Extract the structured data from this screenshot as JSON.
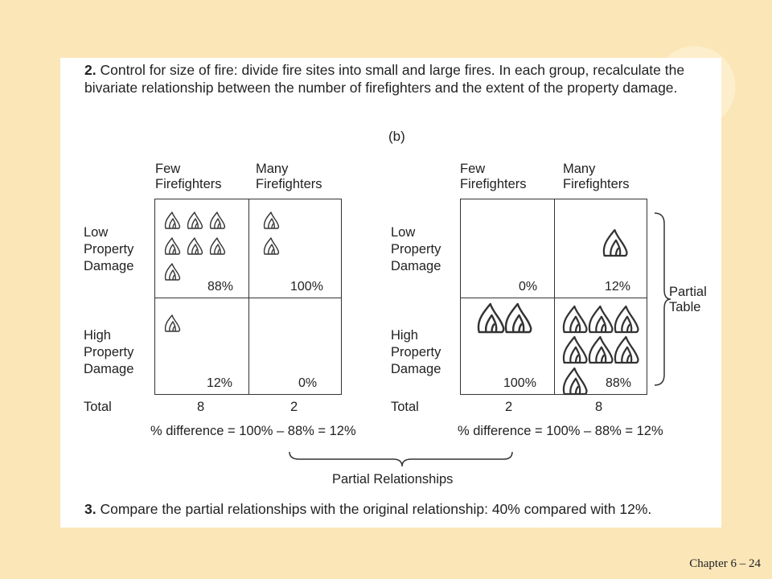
{
  "step2": {
    "number": "2.",
    "text": "Control for size of fire: divide fire sites into small and large fires. In each group, recalculate the bivariate relationship between the number of firefighters and the extent of the property damage."
  },
  "subfigure_label": "(b)",
  "small_fires_table": {
    "col_headers": [
      "Few Firefighters",
      "Many Firefighters"
    ],
    "row_labels": [
      "Low Property Damage",
      "High Property Damage"
    ],
    "cells": [
      {
        "row": "low",
        "col": "few",
        "percent": "88%",
        "flames": 7
      },
      {
        "row": "low",
        "col": "many",
        "percent": "100%",
        "flames": 2
      },
      {
        "row": "high",
        "col": "few",
        "percent": "12%",
        "flames": 1
      },
      {
        "row": "high",
        "col": "many",
        "percent": "0%",
        "flames": 0
      }
    ],
    "total_label": "Total",
    "totals": [
      "8",
      "2"
    ],
    "difference": "% difference = 100% – 88% = 12%"
  },
  "large_fires_table": {
    "col_headers": [
      "Few Firefighters",
      "Many Firefighters"
    ],
    "row_labels": [
      "Low Property Damage",
      "High Property Damage"
    ],
    "cells": [
      {
        "row": "low",
        "col": "few",
        "percent": "0%",
        "flames": 0
      },
      {
        "row": "low",
        "col": "many",
        "percent": "12%",
        "flames": 1
      },
      {
        "row": "high",
        "col": "few",
        "percent": "100%",
        "flames": 2
      },
      {
        "row": "high",
        "col": "many",
        "percent": "88%",
        "flames": 7
      }
    ],
    "total_label": "Total",
    "totals": [
      "2",
      "8"
    ],
    "difference": "% difference = 100% – 88% = 12%"
  },
  "partial_table_label": "Partial Table",
  "partial_relationships_label": "Partial Relationships",
  "step3": {
    "number": "3.",
    "text": "Compare the partial relationships with the original relationship: 40% compared with 12%."
  },
  "footer": "Chapter 6 – 24",
  "icon": "flame-icon"
}
